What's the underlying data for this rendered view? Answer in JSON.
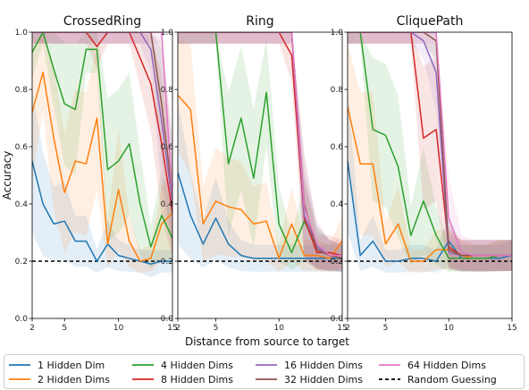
{
  "chart_data": {
    "type": "line",
    "xlabel": "Distance from source to target",
    "ylabel": "Accuracy",
    "xlim": [
      2,
      15
    ],
    "ylim": [
      0.0,
      1.0
    ],
    "xticks": [
      "2",
      "5",
      "10",
      "15"
    ],
    "yticks": [
      "0.0",
      "0.2",
      "0.4",
      "0.6",
      "0.8",
      "1.0"
    ],
    "legend_position": "bottom",
    "legend": [
      {
        "key": "h1",
        "label": "1 Hidden Dim",
        "color": "#1f77b4",
        "style": "solid"
      },
      {
        "key": "h2",
        "label": "2 Hidden Dims",
        "color": "#ff7f0e",
        "style": "solid"
      },
      {
        "key": "h4",
        "label": "4 Hidden Dims",
        "color": "#2ca02c",
        "style": "solid"
      },
      {
        "key": "h8",
        "label": "8 Hidden Dims",
        "color": "#d62728",
        "style": "solid"
      },
      {
        "key": "h16",
        "label": "16 Hidden Dims",
        "color": "#9467bd",
        "style": "solid"
      },
      {
        "key": "h32",
        "label": "32 Hidden Dims",
        "color": "#8c564b",
        "style": "solid"
      },
      {
        "key": "h64",
        "label": "64 Hidden Dims",
        "color": "#e377c2",
        "style": "solid"
      },
      {
        "key": "rand",
        "label": "Random Guessing",
        "color": "#000000",
        "style": "dashed"
      }
    ],
    "random_guessing": 0.2,
    "panels": [
      {
        "title": "CrossedRing",
        "x": [
          2,
          3,
          4,
          5,
          6,
          7,
          8,
          9,
          10,
          11,
          12,
          13,
          14,
          15
        ],
        "series": {
          "h1": [
            0.55,
            0.4,
            0.33,
            0.34,
            0.27,
            0.27,
            0.2,
            0.26,
            0.22,
            0.21,
            0.2,
            0.19,
            0.2,
            0.2
          ],
          "h2": [
            0.72,
            0.86,
            0.63,
            0.44,
            0.55,
            0.54,
            0.7,
            0.26,
            0.45,
            0.27,
            0.2,
            0.21,
            0.33,
            0.37
          ],
          "h4": [
            0.93,
            1.0,
            0.87,
            0.75,
            0.73,
            0.94,
            0.94,
            0.52,
            0.55,
            0.61,
            0.4,
            0.25,
            0.36,
            0.28
          ],
          "h8": [
            1.0,
            1.0,
            1.0,
            1.0,
            1.0,
            1.0,
            0.95,
            1.0,
            1.0,
            1.0,
            0.91,
            0.82,
            0.61,
            0.37
          ],
          "h16": [
            1.0,
            1.0,
            1.0,
            1.0,
            1.0,
            1.0,
            1.0,
            1.0,
            1.0,
            1.0,
            1.0,
            0.94,
            0.69,
            0.4
          ],
          "h32": [
            1.0,
            1.0,
            1.0,
            1.0,
            1.0,
            1.0,
            1.0,
            1.0,
            1.0,
            1.0,
            1.0,
            1.0,
            0.75,
            0.43
          ],
          "h64": [
            1.0,
            1.0,
            1.0,
            1.0,
            1.0,
            1.0,
            1.0,
            1.0,
            1.0,
            1.0,
            1.0,
            1.0,
            1.0,
            0.42
          ]
        }
      },
      {
        "title": "Ring",
        "x": [
          2,
          3,
          4,
          5,
          6,
          7,
          8,
          9,
          10,
          11,
          12,
          13,
          14,
          15
        ],
        "series": {
          "h1": [
            0.51,
            0.36,
            0.26,
            0.35,
            0.26,
            0.22,
            0.21,
            0.21,
            0.21,
            0.21,
            0.21,
            0.21,
            0.21,
            0.21
          ],
          "h2": [
            0.78,
            0.73,
            0.33,
            0.41,
            0.39,
            0.38,
            0.33,
            0.34,
            0.21,
            0.33,
            0.22,
            0.22,
            0.21,
            0.27
          ],
          "h4": [
            1.0,
            1.0,
            1.0,
            1.0,
            0.54,
            0.7,
            0.49,
            0.79,
            0.33,
            0.23,
            0.34,
            0.25,
            0.22,
            0.21
          ],
          "h8": [
            1.0,
            1.0,
            1.0,
            1.0,
            1.0,
            1.0,
            1.0,
            1.0,
            1.0,
            0.92,
            0.35,
            0.23,
            0.23,
            0.22
          ],
          "h16": [
            1.0,
            1.0,
            1.0,
            1.0,
            1.0,
            1.0,
            1.0,
            1.0,
            1.0,
            1.0,
            0.36,
            0.25,
            0.22,
            0.21
          ],
          "h32": [
            1.0,
            1.0,
            1.0,
            1.0,
            1.0,
            1.0,
            1.0,
            1.0,
            1.0,
            1.0,
            0.4,
            0.24,
            0.22,
            0.21
          ],
          "h64": [
            1.0,
            1.0,
            1.0,
            1.0,
            1.0,
            1.0,
            1.0,
            1.0,
            1.0,
            1.0,
            0.39,
            0.26,
            0.22,
            0.22
          ]
        }
      },
      {
        "title": "CliquePath",
        "x": [
          2,
          3,
          4,
          5,
          6,
          7,
          8,
          9,
          10,
          11,
          12,
          13,
          14,
          15
        ],
        "series": {
          "h1": [
            0.55,
            0.22,
            0.27,
            0.2,
            0.2,
            0.21,
            0.21,
            0.2,
            0.27,
            0.21,
            0.21,
            0.21,
            0.21,
            0.22
          ],
          "h2": [
            0.74,
            0.54,
            0.54,
            0.26,
            0.33,
            0.2,
            0.2,
            0.24,
            0.24,
            0.22,
            0.21,
            0.21,
            0.22,
            0.22
          ],
          "h4": [
            1.0,
            1.0,
            0.66,
            0.64,
            0.53,
            0.29,
            0.41,
            0.29,
            0.21,
            0.21,
            0.21,
            0.21,
            0.22,
            0.22
          ],
          "h8": [
            1.0,
            1.0,
            1.0,
            1.0,
            1.0,
            1.0,
            0.63,
            0.66,
            0.25,
            0.22,
            0.22,
            0.22,
            0.22,
            0.22
          ],
          "h16": [
            1.0,
            1.0,
            1.0,
            1.0,
            1.0,
            1.0,
            0.97,
            0.86,
            0.23,
            0.22,
            0.22,
            0.22,
            0.22,
            0.22
          ],
          "h32": [
            1.0,
            1.0,
            1.0,
            1.0,
            1.0,
            1.0,
            1.0,
            0.97,
            0.24,
            0.22,
            0.22,
            0.22,
            0.22,
            0.22
          ],
          "h64": [
            1.0,
            1.0,
            1.0,
            1.0,
            1.0,
            1.0,
            1.0,
            1.0,
            0.35,
            0.23,
            0.22,
            0.22,
            0.22,
            0.22
          ]
        }
      }
    ]
  }
}
